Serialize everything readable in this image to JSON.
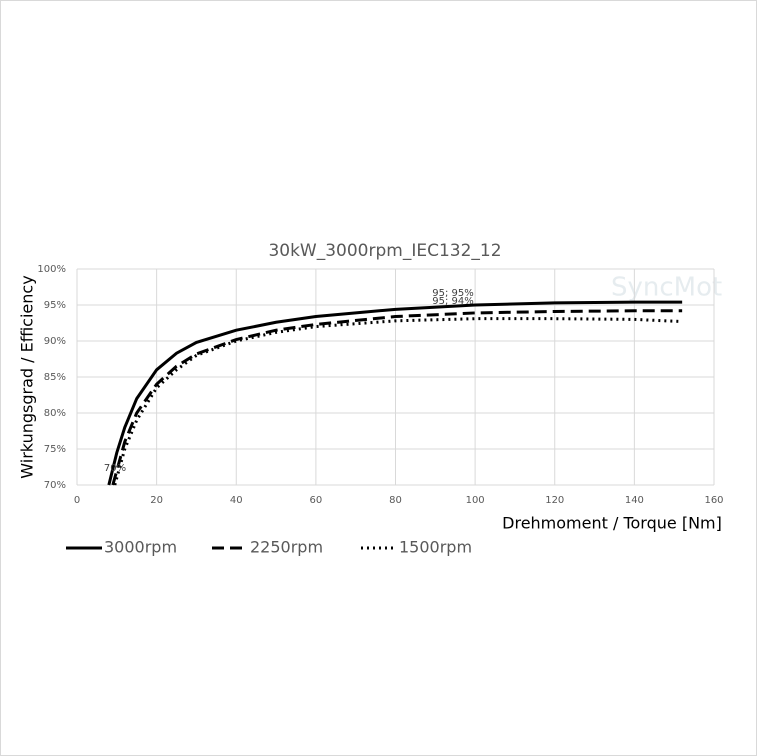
{
  "chart_data": {
    "type": "line",
    "title": "30kW_3000rpm_IEC132_12",
    "x_label": "Drehmoment / Torque [Nm]",
    "y_label": "Wirkungsgrad / Efficiency",
    "watermark": "SyncMot",
    "annotations": [
      "95; 95%",
      "95; 94%",
      "70%"
    ],
    "xlim": [
      0,
      160
    ],
    "xticks": [
      0,
      20,
      40,
      60,
      80,
      100,
      120,
      140,
      160
    ],
    "ylim": [
      70,
      100
    ],
    "yticks": [
      {
        "value": 70,
        "label": "70%"
      },
      {
        "value": 75,
        "label": "75%"
      },
      {
        "value": 80,
        "label": "80%"
      },
      {
        "value": 85,
        "label": "85%"
      },
      {
        "value": 90,
        "label": "90%"
      },
      {
        "value": 95,
        "label": "95%"
      },
      {
        "value": 100,
        "label": "100%"
      }
    ],
    "grid": true,
    "legend": "bottom",
    "series": [
      {
        "name": "3000rpm",
        "color": "#000000",
        "dash": "solid",
        "x": [
          8,
          10,
          12,
          15,
          20,
          25,
          30,
          40,
          50,
          60,
          80,
          100,
          120,
          140,
          152
        ],
        "values": [
          70,
          74.5,
          78,
          82,
          86,
          88.3,
          89.8,
          91.5,
          92.6,
          93.4,
          94.4,
          95,
          95.3,
          95.4,
          95.4
        ]
      },
      {
        "name": "2250rpm",
        "color": "#000000",
        "dash": "dashed",
        "x": [
          9,
          10,
          12,
          15,
          20,
          25,
          30,
          40,
          50,
          60,
          80,
          100,
          120,
          140,
          152
        ],
        "values": [
          70,
          72,
          76,
          80,
          84,
          86.5,
          88.2,
          90.2,
          91.5,
          92.3,
          93.4,
          93.9,
          94.1,
          94.2,
          94.2
        ]
      },
      {
        "name": "1500rpm",
        "color": "#000000",
        "dash": "dotted",
        "x": [
          9.5,
          10,
          12,
          15,
          20,
          25,
          30,
          40,
          50,
          60,
          80,
          100,
          120,
          140,
          152
        ],
        "values": [
          70,
          71,
          75,
          79,
          83.5,
          86,
          88,
          90,
          91.2,
          92,
          92.8,
          93.1,
          93.1,
          93,
          92.7
        ]
      }
    ]
  }
}
